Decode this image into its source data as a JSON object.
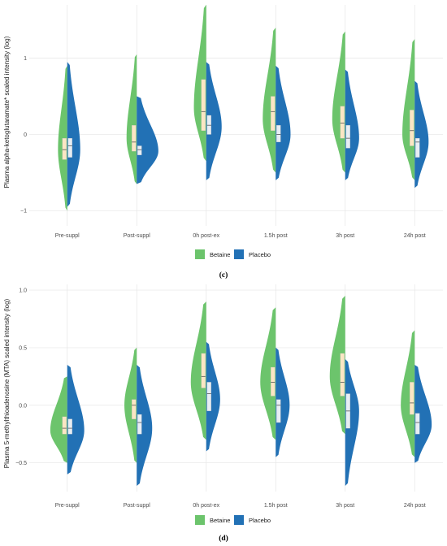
{
  "chart_data": [
    {
      "type": "violin",
      "caption": "(c)",
      "ylabel": "Plasma alpha-ketoglutaramate* scaled intensity (log)",
      "categories": [
        "Pre-suppl",
        "Post-suppl",
        "0h post-ex",
        "1.5h post",
        "3h post",
        "24h post"
      ],
      "yticks": [
        "1",
        "0",
        "−1"
      ],
      "ylim": [
        -1.2,
        1.7
      ],
      "grid": true,
      "legend": {
        "placement": "bottom",
        "entries": [
          "Betaine",
          "Placebo"
        ]
      },
      "series": [
        {
          "name": "Betaine",
          "color": "#6cc46c",
          "side": "left",
          "violins": [
            {
              "min": -1.0,
              "max": 0.9,
              "q1": -0.33,
              "median": -0.2,
              "q3": -0.05,
              "mode": -0.2,
              "width": 0.3
            },
            {
              "min": -0.65,
              "max": 1.05,
              "q1": -0.22,
              "median": -0.1,
              "q3": 0.12,
              "mode": -0.05,
              "width": 0.33
            },
            {
              "min": -0.35,
              "max": 1.7,
              "q1": 0.05,
              "median": 0.3,
              "q3": 0.72,
              "mode": 0.35,
              "width": 0.4
            },
            {
              "min": -0.5,
              "max": 1.4,
              "q1": 0.05,
              "median": 0.3,
              "q3": 0.5,
              "mode": 0.2,
              "width": 0.42
            },
            {
              "min": -0.5,
              "max": 1.35,
              "q1": -0.05,
              "median": 0.15,
              "q3": 0.37,
              "mode": 0.2,
              "width": 0.42
            },
            {
              "min": -0.6,
              "max": 1.25,
              "q1": -0.15,
              "median": 0.05,
              "q3": 0.32,
              "mode": 0.0,
              "width": 0.4
            }
          ]
        },
        {
          "name": "Placebo",
          "color": "#2271b5",
          "side": "right",
          "violins": [
            {
              "min": -0.95,
              "max": 0.95,
              "q1": -0.3,
              "median": -0.15,
              "q3": -0.05,
              "mode": -0.2,
              "width": 0.42
            },
            {
              "min": -0.65,
              "max": 0.5,
              "q1": -0.27,
              "median": -0.2,
              "q3": -0.15,
              "mode": -0.22,
              "width": 0.7
            },
            {
              "min": -0.6,
              "max": 0.95,
              "q1": 0.0,
              "median": 0.12,
              "q3": 0.25,
              "mode": 0.1,
              "width": 0.5
            },
            {
              "min": -0.6,
              "max": 0.9,
              "q1": -0.1,
              "median": 0.0,
              "q3": 0.12,
              "mode": 0.0,
              "width": 0.48
            },
            {
              "min": -0.6,
              "max": 0.85,
              "q1": -0.18,
              "median": -0.05,
              "q3": 0.12,
              "mode": -0.05,
              "width": 0.45
            },
            {
              "min": -0.7,
              "max": 0.7,
              "q1": -0.3,
              "median": -0.1,
              "q3": -0.05,
              "mode": -0.1,
              "width": 0.45
            }
          ]
        }
      ]
    },
    {
      "type": "violin",
      "caption": "(d)",
      "ylabel": "Plasma 5-methylthioadenosine (MTA) scaled intensity (log)",
      "categories": [
        "Pre-suppl",
        "Post-suppl",
        "0h post-ex",
        "1.5h post",
        "3h post",
        "24h post"
      ],
      "yticks": [
        "1.0",
        "0.5",
        "0.0",
        "−0.5"
      ],
      "ylim": [
        -0.75,
        1.05
      ],
      "grid": true,
      "legend": {
        "placement": "bottom",
        "entries": [
          "Betaine",
          "Placebo"
        ]
      },
      "series": [
        {
          "name": "Betaine",
          "color": "#6cc46c",
          "side": "left",
          "violins": [
            {
              "min": -0.5,
              "max": 0.25,
              "q1": -0.25,
              "median": -0.2,
              "q3": -0.1,
              "mode": -0.22,
              "width": 0.55
            },
            {
              "min": -0.5,
              "max": 0.5,
              "q1": -0.12,
              "median": 0.0,
              "q3": 0.05,
              "mode": 0.0,
              "width": 0.4
            },
            {
              "min": -0.3,
              "max": 0.9,
              "q1": 0.15,
              "median": 0.25,
              "q3": 0.45,
              "mode": 0.2,
              "width": 0.5
            },
            {
              "min": -0.3,
              "max": 0.85,
              "q1": 0.08,
              "median": 0.2,
              "q3": 0.33,
              "mode": 0.2,
              "width": 0.5
            },
            {
              "min": -0.25,
              "max": 0.95,
              "q1": 0.08,
              "median": 0.2,
              "q3": 0.45,
              "mode": 0.25,
              "width": 0.5
            },
            {
              "min": -0.45,
              "max": 0.65,
              "q1": -0.08,
              "median": 0.02,
              "q3": 0.2,
              "mode": 0.0,
              "width": 0.45
            }
          ]
        },
        {
          "name": "Placebo",
          "color": "#2271b5",
          "side": "right",
          "violins": [
            {
              "min": -0.6,
              "max": 0.35,
              "q1": -0.25,
              "median": -0.2,
              "q3": -0.12,
              "mode": -0.22,
              "width": 0.55
            },
            {
              "min": -0.7,
              "max": 0.35,
              "q1": -0.25,
              "median": -0.15,
              "q3": -0.08,
              "mode": -0.2,
              "width": 0.5
            },
            {
              "min": -0.4,
              "max": 0.55,
              "q1": -0.05,
              "median": 0.1,
              "q3": 0.2,
              "mode": 0.05,
              "width": 0.45
            },
            {
              "min": -0.45,
              "max": 0.5,
              "q1": -0.15,
              "median": 0.0,
              "q3": 0.05,
              "mode": 0.0,
              "width": 0.45
            },
            {
              "min": -0.7,
              "max": 0.4,
              "q1": -0.2,
              "median": -0.05,
              "q3": 0.1,
              "mode": -0.05,
              "width": 0.45
            },
            {
              "min": -0.5,
              "max": 0.35,
              "q1": -0.25,
              "median": -0.15,
              "q3": -0.07,
              "mode": -0.17,
              "width": 0.55
            }
          ]
        }
      ]
    }
  ]
}
